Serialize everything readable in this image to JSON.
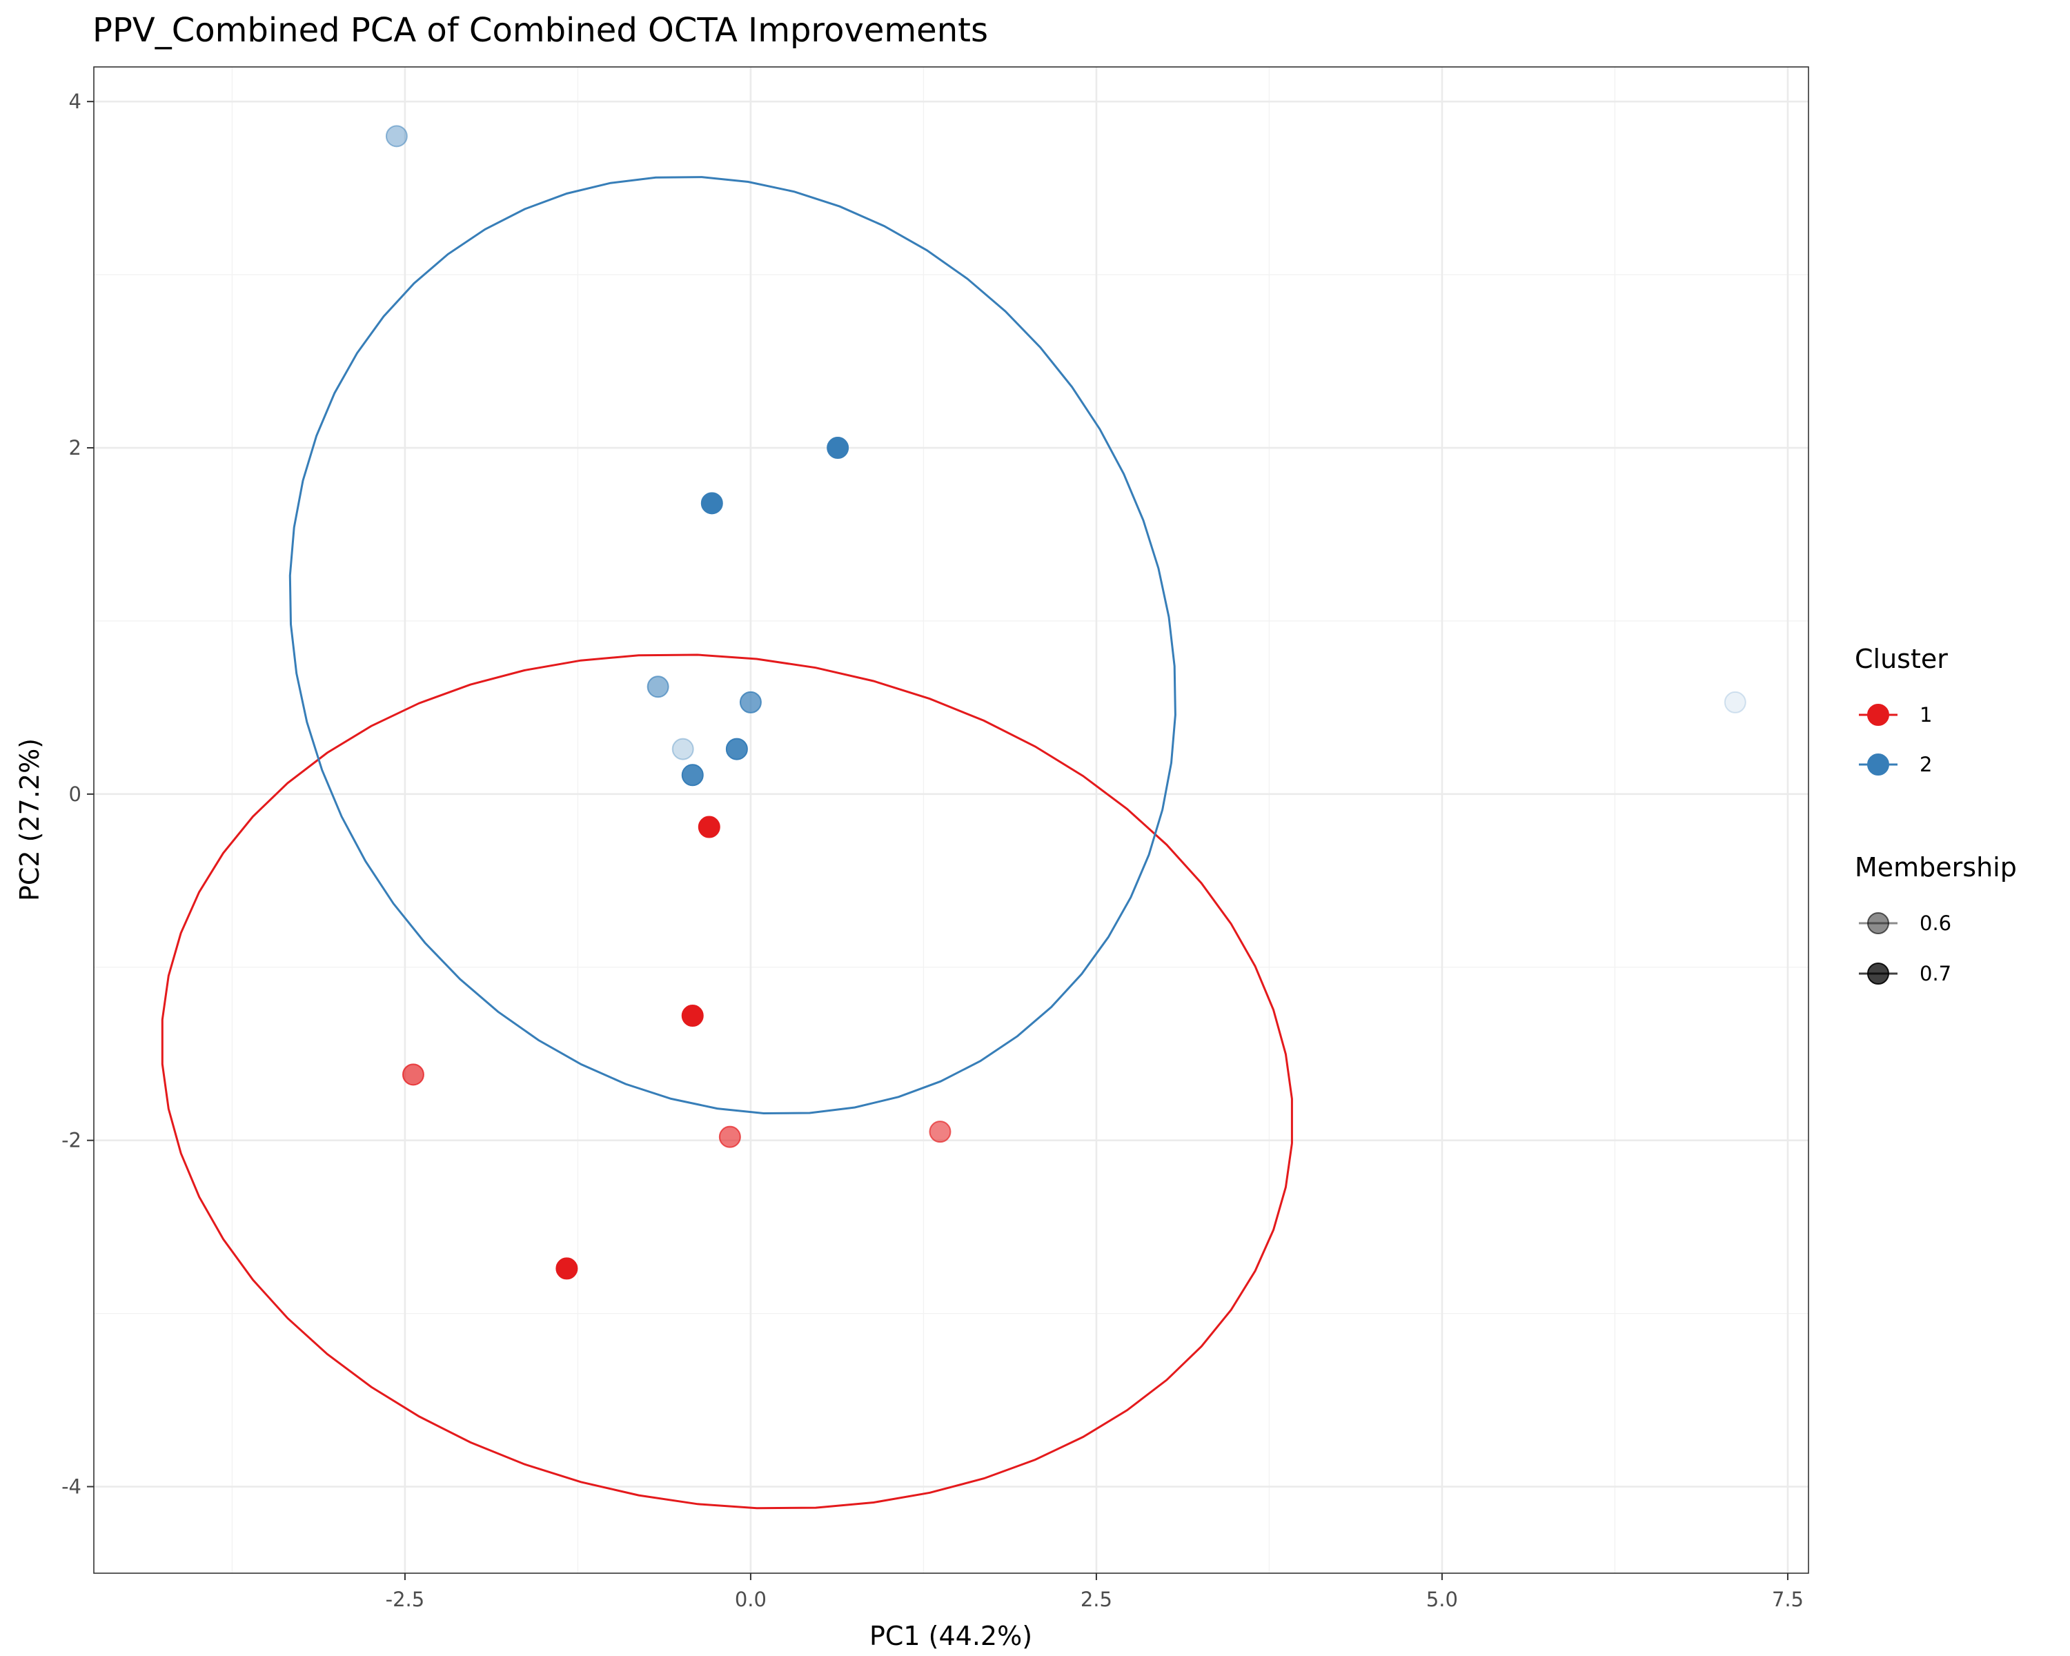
{
  "chart_data": {
    "type": "scatter",
    "title": "PPV_Combined PCA of Combined OCTA Improvements",
    "xlabel": "PC1 (44.2%)",
    "ylabel": "PC2 (27.2%)",
    "xlim": [
      -4.75,
      7.65
    ],
    "ylim": [
      -4.5,
      4.2
    ],
    "xticks": [
      -2.5,
      0.0,
      2.5,
      5.0,
      7.5
    ],
    "xtick_labels": [
      "-2.5",
      "0.0",
      "2.5",
      "5.0",
      "7.5"
    ],
    "yticks": [
      -4,
      -2,
      0,
      2,
      4
    ],
    "ytick_labels": [
      "-4",
      "-2",
      "0",
      "2",
      "4"
    ],
    "grid": true,
    "legend_position": "right",
    "legend": {
      "cluster_title": "Cluster",
      "cluster_items": [
        {
          "label": "1",
          "color": "#e41a1c"
        },
        {
          "label": "2",
          "color": "#377eb8"
        }
      ],
      "membership_title": "Membership",
      "membership_items": [
        {
          "label": "0.6",
          "alpha": 0.45
        },
        {
          "label": "0.7",
          "alpha": 0.75
        }
      ]
    },
    "series": [
      {
        "name": "1",
        "color": "#e41a1c",
        "points": [
          {
            "x": -0.3,
            "y": -0.19,
            "alpha": 1.0
          },
          {
            "x": -0.42,
            "y": -1.28,
            "alpha": 1.0
          },
          {
            "x": -1.33,
            "y": -2.74,
            "alpha": 1.0
          },
          {
            "x": -2.44,
            "y": -1.62,
            "alpha": 0.65
          },
          {
            "x": -0.15,
            "y": -1.98,
            "alpha": 0.6
          },
          {
            "x": 1.37,
            "y": -1.95,
            "alpha": 0.55
          }
        ],
        "ellipse": {
          "cx": -0.17,
          "cy": -1.66,
          "rx": 4.1,
          "ry": 2.45,
          "angle_deg": -5
        }
      },
      {
        "name": "2",
        "color": "#377eb8",
        "points": [
          {
            "x": 0.63,
            "y": 2.0,
            "alpha": 1.0
          },
          {
            "x": -0.28,
            "y": 1.68,
            "alpha": 1.0
          },
          {
            "x": -0.1,
            "y": 0.26,
            "alpha": 0.9
          },
          {
            "x": -0.42,
            "y": 0.11,
            "alpha": 0.9
          },
          {
            "x": 0.0,
            "y": 0.53,
            "alpha": 0.7
          },
          {
            "x": -0.67,
            "y": 0.62,
            "alpha": 0.55
          },
          {
            "x": -0.49,
            "y": 0.26,
            "alpha": 0.25
          },
          {
            "x": -2.56,
            "y": 3.8,
            "alpha": 0.4
          },
          {
            "x": 7.12,
            "y": 0.53,
            "alpha": 0.1
          }
        ],
        "ellipse": {
          "cx": -0.13,
          "cy": 0.86,
          "rx": 3.25,
          "ry": 2.65,
          "angle_deg": -17
        }
      }
    ]
  }
}
